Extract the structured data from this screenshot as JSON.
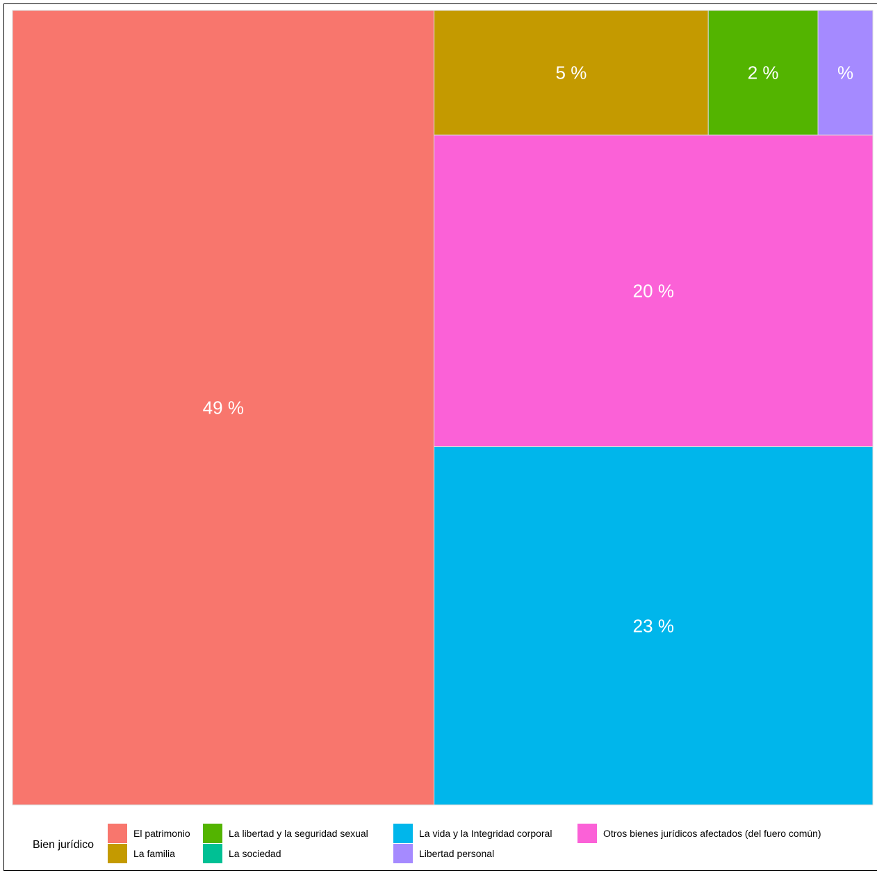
{
  "chart_data": {
    "type": "treemap",
    "legend_title": "Bien jurídico",
    "legend_placement": "bottom",
    "series": [
      {
        "name": "El patrimonio",
        "value": 49,
        "label": "49 %",
        "color": "#F8766D"
      },
      {
        "name": "La familia",
        "value": 5,
        "label": "5 %",
        "color": "#C49A00"
      },
      {
        "name": "La libertad y la seguridad sexual",
        "value": 2,
        "label": "2 %",
        "color": "#53B400"
      },
      {
        "name": "La sociedad",
        "value": 0,
        "label": "",
        "color": "#00C094"
      },
      {
        "name": "La vida y la Integridad corporal",
        "value": 23,
        "label": "23 %",
        "color": "#00B6EB"
      },
      {
        "name": "Libertad personal",
        "value": 1,
        "label": "%",
        "color": "#A58AFF"
      },
      {
        "name": "Otros bienes jurídicos afectados (del fuero común)",
        "value": 20,
        "label": "20 %",
        "color": "#FB61D7"
      }
    ]
  }
}
